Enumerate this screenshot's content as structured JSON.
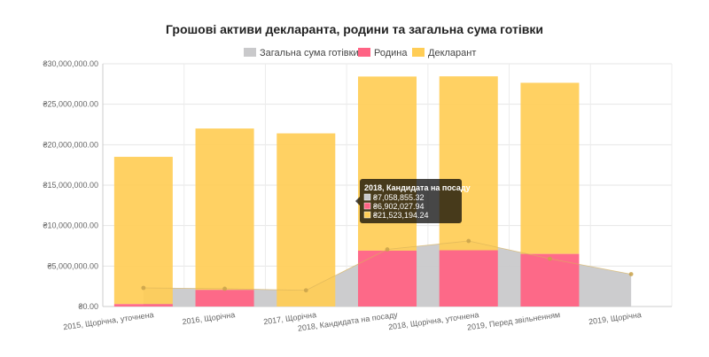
{
  "chart_data": {
    "type": "bar",
    "title": "Грошові активи декларанта, родини та загальна сума готівки",
    "categories": [
      "2015, Щорічна, уточнена",
      "2016, Щорічна",
      "2017, Щорічна",
      "2018, Кандидата на посаду",
      "2018, Щорічна, уточнена",
      "2019, Перед звільненням",
      "2019, Щорічна"
    ],
    "series": [
      {
        "name": "Загальна сума готівки",
        "kind": "area",
        "color": "#c9c9cb",
        "values": [
          2300000,
          2200000,
          2000000,
          7058855.32,
          8100000,
          5900000,
          4000000
        ]
      },
      {
        "name": "Родина",
        "kind": "bar",
        "stack": true,
        "color": "#ff6384",
        "values": [
          300000,
          2050000,
          0,
          6902027.94,
          6950000,
          6500000,
          null
        ]
      },
      {
        "name": "Декларант",
        "kind": "bar",
        "stack": true,
        "color": "#ffcd56",
        "values": [
          18200000,
          19950000,
          21400000,
          21523194.24,
          21500000,
          21150000,
          null
        ]
      }
    ],
    "ylim": [
      0,
      30000000
    ],
    "yticks": [
      "₴0.00",
      "₴5,000,000.00",
      "₴10,000,000.00",
      "₴15,000,000.00",
      "₴20,000,000.00",
      "₴25,000,000.00",
      "₴30,000,000.00"
    ],
    "ytick_values": [
      0,
      5000000,
      10000000,
      15000000,
      20000000,
      25000000,
      30000000
    ],
    "grid": true,
    "legend": "top",
    "tooltip": {
      "title": "2018, Кандидата на посаду",
      "lines": [
        {
          "color": "#c9c9cb",
          "text": "₴7,058,855.32"
        },
        {
          "color": "#ff6384",
          "text": "₴6,902,027.94"
        },
        {
          "color": "#ffcd56",
          "text": "₴21,523,194.24"
        }
      ]
    }
  }
}
